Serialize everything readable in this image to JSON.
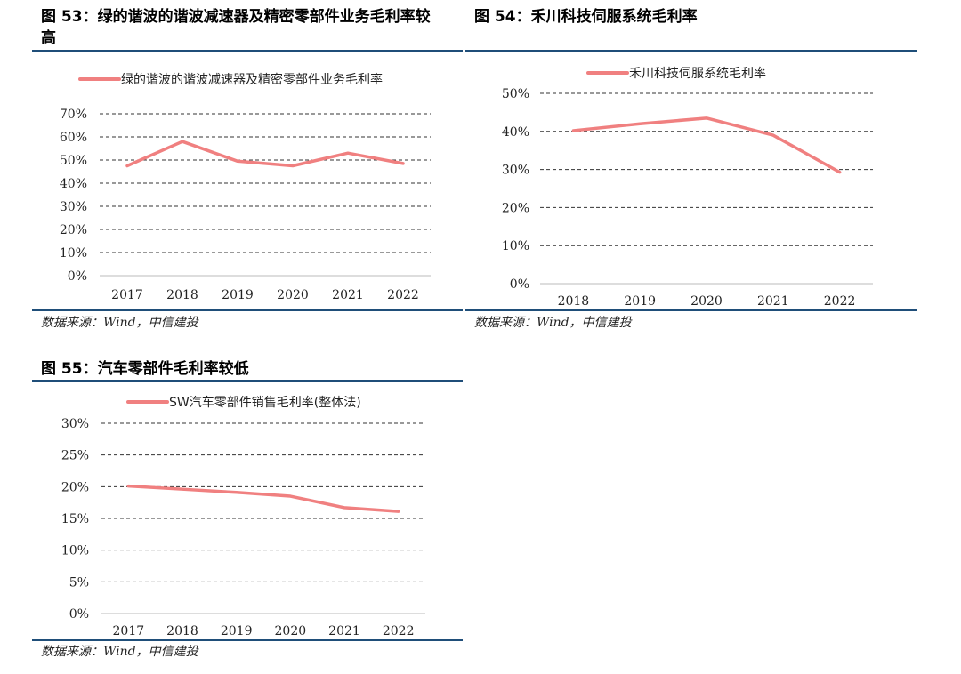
{
  "figures": {
    "fig53": {
      "title_line1": "图 53：绿的谐波的谐波减速器及精密零部件业务毛利率较",
      "title_line2": "高",
      "source": "数据来源：Wind，中信建投"
    },
    "fig54": {
      "title": "图 54：禾川科技伺服系统毛利率",
      "source": "数据来源：Wind，中信建投"
    },
    "fig55": {
      "title": "图 55：汽车零部件毛利率较低",
      "source": "数据来源：Wind，中信建投"
    }
  },
  "chart_data": [
    {
      "id": "fig53",
      "type": "line",
      "categories": [
        "2017",
        "2018",
        "2019",
        "2020",
        "2021",
        "2022"
      ],
      "series": [
        {
          "name": "绿的谐波的谐波减速器及精密零部件业务毛利率",
          "values": [
            47.5,
            58,
            49.5,
            47.5,
            53,
            48.5
          ],
          "color": "#f08080"
        }
      ],
      "yticks": [
        0,
        10,
        20,
        30,
        40,
        50,
        60,
        70
      ],
      "ytick_labels": [
        "0%",
        "10%",
        "20%",
        "30%",
        "40%",
        "50%",
        "60%",
        "70%"
      ],
      "ylim": [
        0,
        70
      ],
      "grid": true,
      "legend": "top"
    },
    {
      "id": "fig54",
      "type": "line",
      "categories": [
        "2018",
        "2019",
        "2020",
        "2021",
        "2022"
      ],
      "series": [
        {
          "name": "禾川科技伺服系统毛利率",
          "values": [
            40.2,
            42,
            43.5,
            39,
            29.3
          ],
          "color": "#f08080"
        }
      ],
      "yticks": [
        0,
        10,
        20,
        30,
        40,
        50
      ],
      "ytick_labels": [
        "0%",
        "10%",
        "20%",
        "30%",
        "40%",
        "50%"
      ],
      "ylim": [
        0,
        50
      ],
      "grid": true,
      "legend": "top"
    },
    {
      "id": "fig55",
      "type": "line",
      "categories": [
        "2017",
        "2018",
        "2019",
        "2020",
        "2021",
        "2022"
      ],
      "series": [
        {
          "name": "SW汽车零部件销售毛利率(整体法)",
          "values": [
            20.1,
            19.6,
            19.1,
            18.5,
            16.7,
            16.1
          ],
          "color": "#f08080"
        }
      ],
      "yticks": [
        0,
        5,
        10,
        15,
        20,
        25,
        30
      ],
      "ytick_labels": [
        "0%",
        "5%",
        "10%",
        "15%",
        "20%",
        "25%",
        "30%"
      ],
      "ylim": [
        0,
        30
      ],
      "grid": true,
      "legend": "top"
    }
  ]
}
